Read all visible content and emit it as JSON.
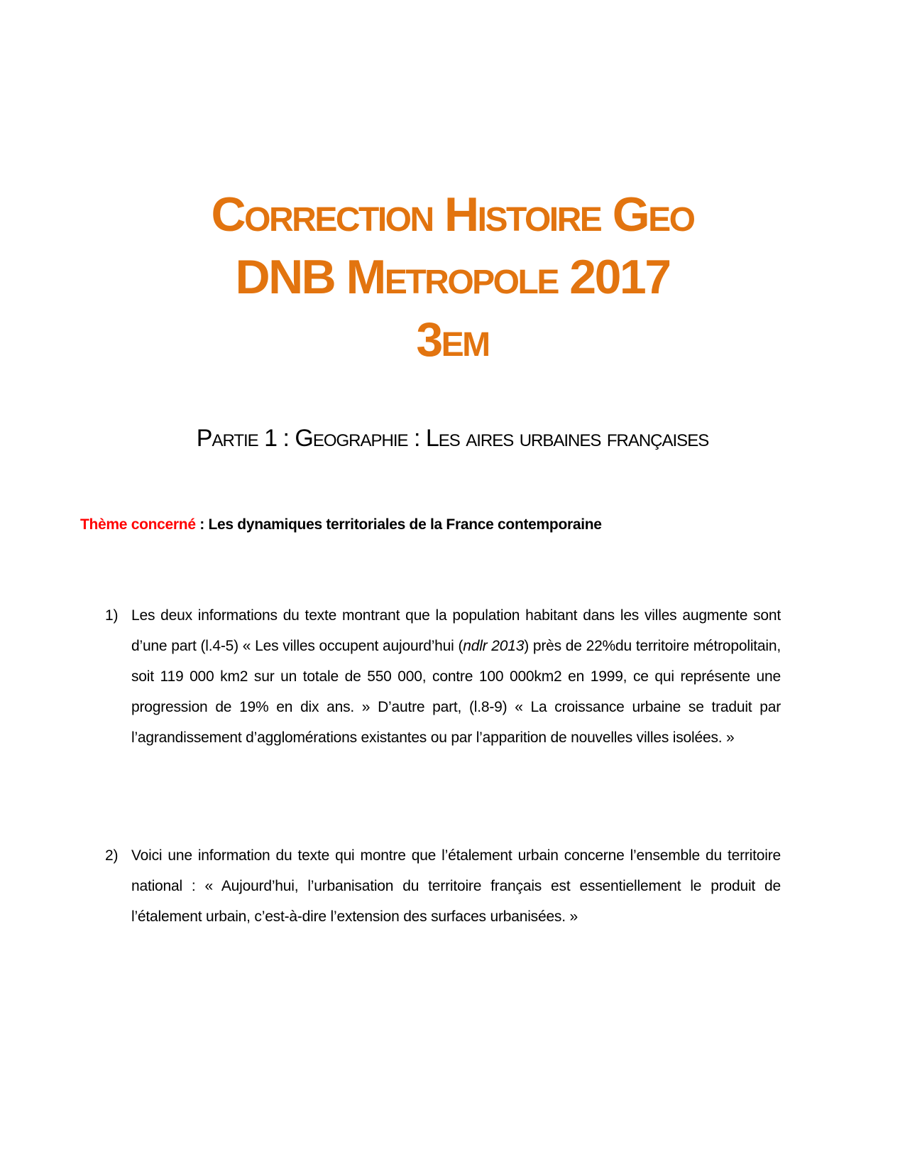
{
  "header": {
    "title_lines": [
      "Correction Histoire Geo",
      "DNB Metropole 2017",
      "3em"
    ],
    "title_color": "#e2740f"
  },
  "partie": "Partie 1 : Geographie : Les aires urbaines françaises",
  "theme": {
    "label": "Thème concerné",
    "separator": " : ",
    "value": "Les dynamiques territoriales de la France contemporaine",
    "label_color": "#ff0000"
  },
  "questions": [
    {
      "number": "1)",
      "parts": [
        "Les deux informations du texte montrant que la population habitant dans les villes augmente sont d’une part (l.4-5) « Les villes occupent aujourd’hui (",
        "ndlr 2013",
        ") près de 22%du territoire métropolitain, soit 119 000 km2 sur un totale de 550 000, contre 100 000km2 en 1999, ce qui représente une progression de 19% en dix ans. » D’autre part, (l.8-9) « La croissance urbaine se traduit par l’agrandissement d’agglomérations existantes ou par l’apparition de nouvelles villes isolées. »"
      ]
    },
    {
      "number": "2)",
      "text": "Voici une information du texte qui montre que l’étalement urbain concerne l’ensemble du territoire national : « Aujourd’hui, l’urbanisation du territoire français est essentiellement le produit de l’étalement urbain, c’est-à-dire l’extension des surfaces urbanisées. »"
    }
  ]
}
